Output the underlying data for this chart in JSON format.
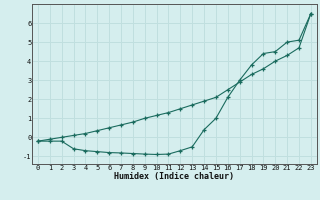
{
  "x": [
    0,
    1,
    2,
    3,
    4,
    5,
    6,
    7,
    8,
    9,
    10,
    11,
    12,
    13,
    14,
    15,
    16,
    17,
    18,
    19,
    20,
    21,
    22,
    23
  ],
  "line1_y": [
    -0.2,
    -0.2,
    -0.2,
    -0.6,
    -0.7,
    -0.75,
    -0.8,
    -0.82,
    -0.85,
    -0.88,
    -0.9,
    -0.88,
    -0.7,
    -0.5,
    0.4,
    1.0,
    2.1,
    3.0,
    3.8,
    4.4,
    4.5,
    5.0,
    5.1,
    6.5
  ],
  "line2_y": [
    -0.2,
    -0.1,
    -0.0,
    0.1,
    0.2,
    0.35,
    0.5,
    0.65,
    0.8,
    1.0,
    1.15,
    1.3,
    1.5,
    1.7,
    1.9,
    2.1,
    2.5,
    2.9,
    3.3,
    3.6,
    4.0,
    4.3,
    4.7,
    6.5
  ],
  "xlabel": "Humidex (Indice chaleur)",
  "line_color": "#1a6b5e",
  "bg_color": "#d5eeee",
  "grid_color": "#c0dfdf",
  "ylim": [
    -1.4,
    7.0
  ],
  "xlim": [
    -0.5,
    23.5
  ],
  "yticks": [
    -1,
    0,
    1,
    2,
    3,
    4,
    5,
    6
  ],
  "xticks": [
    0,
    1,
    2,
    3,
    4,
    5,
    6,
    7,
    8,
    9,
    10,
    11,
    12,
    13,
    14,
    15,
    16,
    17,
    18,
    19,
    20,
    21,
    22,
    23
  ],
  "tick_fontsize": 5.0,
  "xlabel_fontsize": 6.0
}
